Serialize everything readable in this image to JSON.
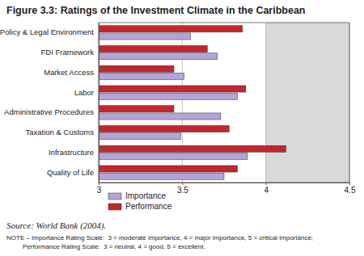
{
  "chart_data": {
    "type": "bar",
    "orientation": "horizontal",
    "title": "Figure 3.3: Ratings of the Investment Climate in the Caribbean",
    "categories": [
      "Policy & Legal Environment",
      "FDI Framework",
      "Market Access",
      "Labor",
      "Administrative Procedures",
      "Taxation & Customs",
      "Infrastructure",
      "Quality of Life"
    ],
    "series": [
      {
        "name": "Importance",
        "color": "#b4a4d8",
        "values": [
          3.55,
          3.71,
          3.51,
          3.83,
          3.73,
          3.49,
          3.89,
          3.75
        ]
      },
      {
        "name": "Performance",
        "color": "#c1272d",
        "values": [
          3.86,
          3.65,
          3.45,
          3.88,
          3.45,
          3.78,
          4.12,
          3.83
        ]
      }
    ],
    "xlim": [
      3,
      4.5
    ],
    "xticks": [
      3,
      3.5,
      4,
      4.5
    ],
    "grid": true,
    "legend": "bottom",
    "annotations": [
      "Source: World Bank (2004).",
      "NOTE – Importance Rating Scale:  3 = moderate importance, 4 = major importance, 5 = critical importance;",
      "Performance Rating Scale:  3 = neutral, 4 = good, 5 = excellent."
    ]
  }
}
